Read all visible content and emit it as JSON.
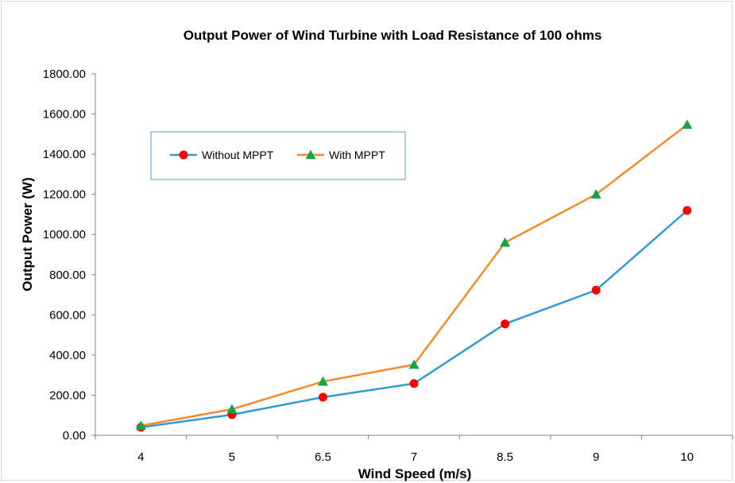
{
  "chart_data": {
    "type": "line",
    "title": "Output Power of Wind Turbine with Load Resistance of 100 ohms",
    "xlabel": "Wind Speed (m/s)",
    "ylabel": "Output Power (W)",
    "categories": [
      "4",
      "5",
      "6.5",
      "7",
      "8.5",
      "9",
      "10"
    ],
    "ylim": [
      0,
      1800
    ],
    "yticks": [
      "0.00",
      "200.00",
      "400.00",
      "600.00",
      "800.00",
      "1000.00",
      "1200.00",
      "1400.00",
      "1600.00",
      "1800.00"
    ],
    "grid": false,
    "legend_position": "upper-left",
    "series": [
      {
        "name": "Without MPPT",
        "values": [
          40,
          103,
          190,
          258,
          555,
          723,
          1120
        ],
        "line_color": "#2e9bd6",
        "marker": "circle",
        "marker_color": "#ff0000"
      },
      {
        "name": "With MPPT",
        "values": [
          48,
          130,
          268,
          352,
          960,
          1200,
          1547
        ],
        "line_color": "#f58a2b",
        "marker": "triangle",
        "marker_color": "#12a545"
      }
    ]
  }
}
